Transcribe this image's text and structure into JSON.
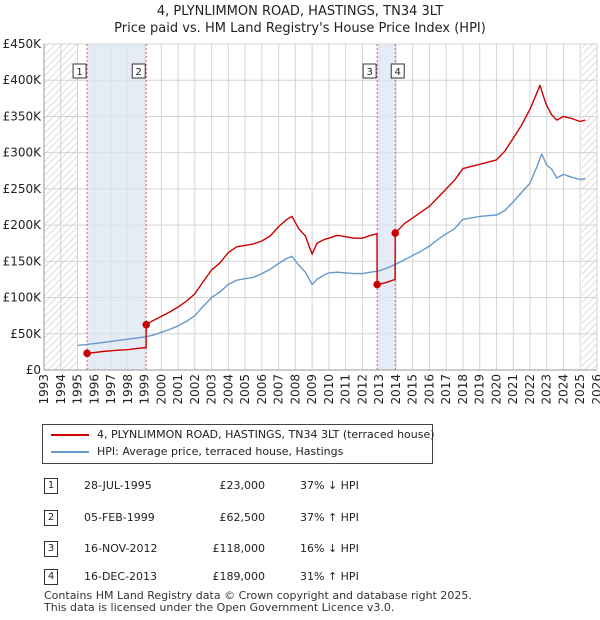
{
  "chart_data": {
    "type": "line",
    "title": "4, PLYNLIMMON ROAD, HASTINGS, TN34 3LT",
    "subtitle": "Price paid vs. HM Land Registry's House Price Index (HPI)",
    "xlabel": "",
    "ylabel": "",
    "xlim": [
      1993,
      2026
    ],
    "ylim": [
      0,
      450000
    ],
    "x_ticks": [
      "1993",
      "1994",
      "1995",
      "1996",
      "1997",
      "1998",
      "1999",
      "2000",
      "2001",
      "2002",
      "2003",
      "2004",
      "2005",
      "2006",
      "2007",
      "2008",
      "2009",
      "2010",
      "2011",
      "2012",
      "2013",
      "2014",
      "2015",
      "2016",
      "2017",
      "2018",
      "2019",
      "2020",
      "2021",
      "2022",
      "2023",
      "2024",
      "2025",
      "2026"
    ],
    "y_ticks": [
      {
        "value": 0,
        "label": "£0"
      },
      {
        "value": 50000,
        "label": "£50K"
      },
      {
        "value": 100000,
        "label": "£100K"
      },
      {
        "value": 150000,
        "label": "£150K"
      },
      {
        "value": 200000,
        "label": "£200K"
      },
      {
        "value": 250000,
        "label": "£250K"
      },
      {
        "value": 300000,
        "label": "£300K"
      },
      {
        "value": 350000,
        "label": "£350K"
      },
      {
        "value": 400000,
        "label": "£400K"
      },
      {
        "value": 450000,
        "label": "£450K"
      }
    ],
    "hatched_ranges": [
      [
        1993,
        1995.0
      ],
      [
        2025.1,
        2026
      ]
    ],
    "shaded_ranges": [
      [
        1995.57,
        1999.1
      ],
      [
        2012.88,
        2013.96
      ]
    ],
    "series": [
      {
        "name": "4, PLYNLIMMON ROAD, HASTINGS, TN34 3LT (terraced house)",
        "color": "#cc0000",
        "x": [
          1995.57,
          1996.0,
          1996.5,
          1997.0,
          1997.5,
          1998.0,
          1998.5,
          1999.09,
          1999.1,
          1999.5,
          2000.0,
          2000.5,
          2001.0,
          2001.5,
          2002.0,
          2002.5,
          2003.0,
          2003.5,
          2004.0,
          2004.5,
          2005.0,
          2005.5,
          2006.0,
          2006.5,
          2007.0,
          2007.5,
          2007.8,
          2008.2,
          2008.6,
          2009.0,
          2009.3,
          2009.7,
          2010.0,
          2010.5,
          2011.0,
          2011.5,
          2012.0,
          2012.5,
          2012.87,
          2012.88,
          2013.3,
          2013.7,
          2013.95,
          2013.96,
          2014.5,
          2015.0,
          2015.5,
          2016.0,
          2016.5,
          2017.0,
          2017.5,
          2018.0,
          2018.5,
          2019.0,
          2019.5,
          2020.0,
          2020.5,
          2021.0,
          2021.5,
          2022.0,
          2022.4,
          2022.6,
          2022.8,
          2023.0,
          2023.3,
          2023.6,
          2024.0,
          2024.5,
          2025.0,
          2025.3
        ],
        "values": [
          23000,
          24000,
          25500,
          26500,
          27500,
          28000,
          29500,
          31000,
          62500,
          68000,
          74000,
          80000,
          87000,
          95000,
          105000,
          122000,
          138000,
          148000,
          162000,
          170000,
          172000,
          174000,
          178000,
          185000,
          198000,
          208000,
          212000,
          195000,
          185000,
          160000,
          175000,
          180000,
          182000,
          186000,
          184000,
          182000,
          182000,
          186000,
          188000,
          118000,
          120000,
          123000,
          125000,
          189000,
          202000,
          210000,
          218000,
          226000,
          238000,
          250000,
          262000,
          278000,
          281000,
          284000,
          287000,
          290000,
          302000,
          320000,
          338000,
          360000,
          382000,
          393000,
          378000,
          365000,
          352000,
          345000,
          350000,
          347000,
          343000,
          345000
        ]
      },
      {
        "name": "HPI: Average price, terraced house, Hastings",
        "color": "#6699cc",
        "x": [
          1995.0,
          1995.5,
          1996.0,
          1996.5,
          1997.0,
          1997.5,
          1998.0,
          1998.5,
          1999.0,
          1999.5,
          2000.0,
          2000.5,
          2001.0,
          2001.5,
          2002.0,
          2002.5,
          2003.0,
          2003.5,
          2004.0,
          2004.5,
          2005.0,
          2005.5,
          2006.0,
          2006.5,
          2007.0,
          2007.5,
          2007.8,
          2008.2,
          2008.6,
          2009.0,
          2009.3,
          2009.7,
          2010.0,
          2010.5,
          2011.0,
          2011.5,
          2012.0,
          2012.5,
          2013.0,
          2013.5,
          2014.0,
          2014.5,
          2015.0,
          2015.5,
          2016.0,
          2016.5,
          2017.0,
          2017.5,
          2018.0,
          2018.5,
          2019.0,
          2019.5,
          2020.0,
          2020.5,
          2021.0,
          2021.5,
          2022.0,
          2022.4,
          2022.7,
          2023.0,
          2023.3,
          2023.6,
          2024.0,
          2024.5,
          2025.0,
          2025.3
        ],
        "values": [
          34000,
          35000,
          36500,
          38000,
          39500,
          41000,
          42500,
          44000,
          45500,
          48000,
          52000,
          56000,
          61000,
          67000,
          75000,
          88000,
          100000,
          108000,
          118000,
          124000,
          126000,
          128000,
          133000,
          139000,
          147000,
          154000,
          157000,
          145000,
          135000,
          118000,
          125000,
          131000,
          134000,
          135000,
          134000,
          133000,
          133000,
          135000,
          137000,
          141000,
          146000,
          152000,
          158000,
          164000,
          171000,
          180000,
          188000,
          195000,
          208000,
          210000,
          212000,
          213000,
          214000,
          220000,
          232000,
          245000,
          258000,
          280000,
          298000,
          283000,
          277000,
          265000,
          270000,
          266000,
          263000,
          264000
        ]
      }
    ],
    "markers": [
      {
        "id": "1",
        "x": 1995.57,
        "value": 23000
      },
      {
        "id": "2",
        "x": 1999.1,
        "value": 62500
      },
      {
        "id": "3",
        "x": 2012.88,
        "value": 118000
      },
      {
        "id": "4",
        "x": 2013.96,
        "value": 189000
      }
    ]
  },
  "legend": {
    "items": [
      {
        "label": "4, PLYNLIMMON ROAD, HASTINGS, TN34 3LT (terraced house)",
        "color": "#cc0000"
      },
      {
        "label": "HPI: Average price, terraced house, Hastings",
        "color": "#6699cc"
      }
    ]
  },
  "transactions": [
    {
      "num": "1",
      "date": "28-JUL-1995",
      "price": "£23,000",
      "hpi": "37% ↓ HPI"
    },
    {
      "num": "2",
      "date": "05-FEB-1999",
      "price": "£62,500",
      "hpi": "37% ↑ HPI"
    },
    {
      "num": "3",
      "date": "16-NOV-2012",
      "price": "£118,000",
      "hpi": "16% ↓ HPI"
    },
    {
      "num": "4",
      "date": "16-DEC-2013",
      "price": "£189,000",
      "hpi": "31% ↑ HPI"
    }
  ],
  "footer": {
    "line1": "Contains HM Land Registry data © Crown copyright and database right 2025.",
    "line2": "This data is licensed under the Open Government Licence v3.0."
  }
}
